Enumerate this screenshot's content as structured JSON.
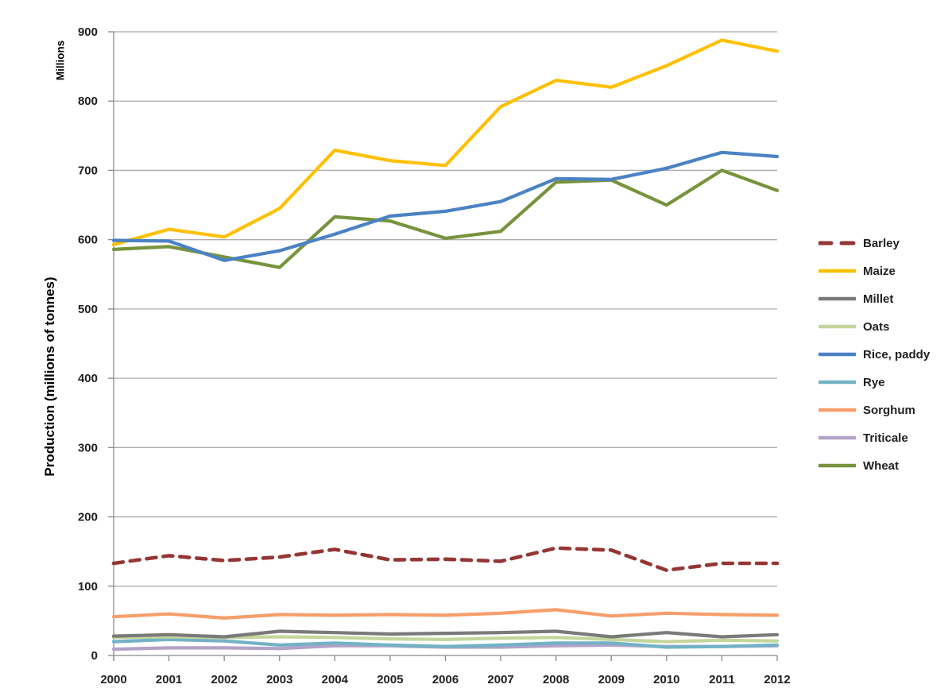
{
  "chart_data": {
    "type": "line",
    "title": "",
    "unit_label": "Millions",
    "ylabel": "Production (millions of tonnes)",
    "xlabel": "",
    "x": [
      2000,
      2001,
      2002,
      2003,
      2004,
      2005,
      2006,
      2007,
      2008,
      2009,
      2010,
      2011,
      2012
    ],
    "ylim": [
      0,
      900
    ],
    "yticks": [
      0,
      100,
      200,
      300,
      400,
      500,
      600,
      700,
      800,
      900
    ],
    "grid": "horizontal",
    "legend_position": "right",
    "series": [
      {
        "name": "Barley",
        "color": "#943634",
        "dashed": true,
        "values": [
          133,
          144,
          137,
          142,
          153,
          138,
          139,
          136,
          155,
          152,
          123,
          133,
          133
        ]
      },
      {
        "name": "Maize",
        "color": "#FFC000",
        "dashed": false,
        "values": [
          593,
          615,
          604,
          645,
          729,
          714,
          707,
          792,
          830,
          820,
          851,
          888,
          872
        ]
      },
      {
        "name": "Millet",
        "color": "#7A7A7A",
        "dashed": false,
        "values": [
          28,
          30,
          27,
          35,
          33,
          31,
          32,
          33,
          35,
          27,
          33,
          27,
          30
        ]
      },
      {
        "name": "Oats",
        "color": "#C3D69B",
        "dashed": false,
        "values": [
          26,
          27,
          26,
          27,
          26,
          24,
          23,
          25,
          26,
          23,
          20,
          22,
          21
        ]
      },
      {
        "name": "Rice, paddy",
        "color": "#4B82C4",
        "dashed": false,
        "values": [
          599,
          598,
          570,
          584,
          608,
          634,
          641,
          655,
          688,
          687,
          703,
          726,
          720
        ]
      },
      {
        "name": "Rye",
        "color": "#72B2C6",
        "dashed": false,
        "values": [
          20,
          23,
          21,
          15,
          18,
          15,
          13,
          15,
          18,
          18,
          12,
          13,
          15
        ]
      },
      {
        "name": "Sorghum",
        "color": "#F89E6B",
        "dashed": false,
        "values": [
          56,
          60,
          54,
          59,
          58,
          59,
          58,
          61,
          66,
          57,
          61,
          59,
          58
        ]
      },
      {
        "name": "Triticale",
        "color": "#B3A2C7",
        "dashed": false,
        "values": [
          9,
          11,
          11,
          10,
          14,
          14,
          12,
          12,
          14,
          15,
          13,
          13,
          14
        ]
      },
      {
        "name": "Wheat",
        "color": "#77933C",
        "dashed": false,
        "values": [
          586,
          590,
          575,
          560,
          633,
          627,
          602,
          612,
          683,
          686,
          650,
          700,
          671
        ]
      }
    ],
    "draw_order": [
      "Sorghum",
      "Barley",
      "Triticale",
      "Rye",
      "Oats",
      "Millet",
      "Wheat",
      "Maize",
      "Rice, paddy"
    ]
  },
  "colors": {
    "gridline": "#ABABAB",
    "axis": "#898989",
    "tick_text": "#1f1f1f"
  }
}
